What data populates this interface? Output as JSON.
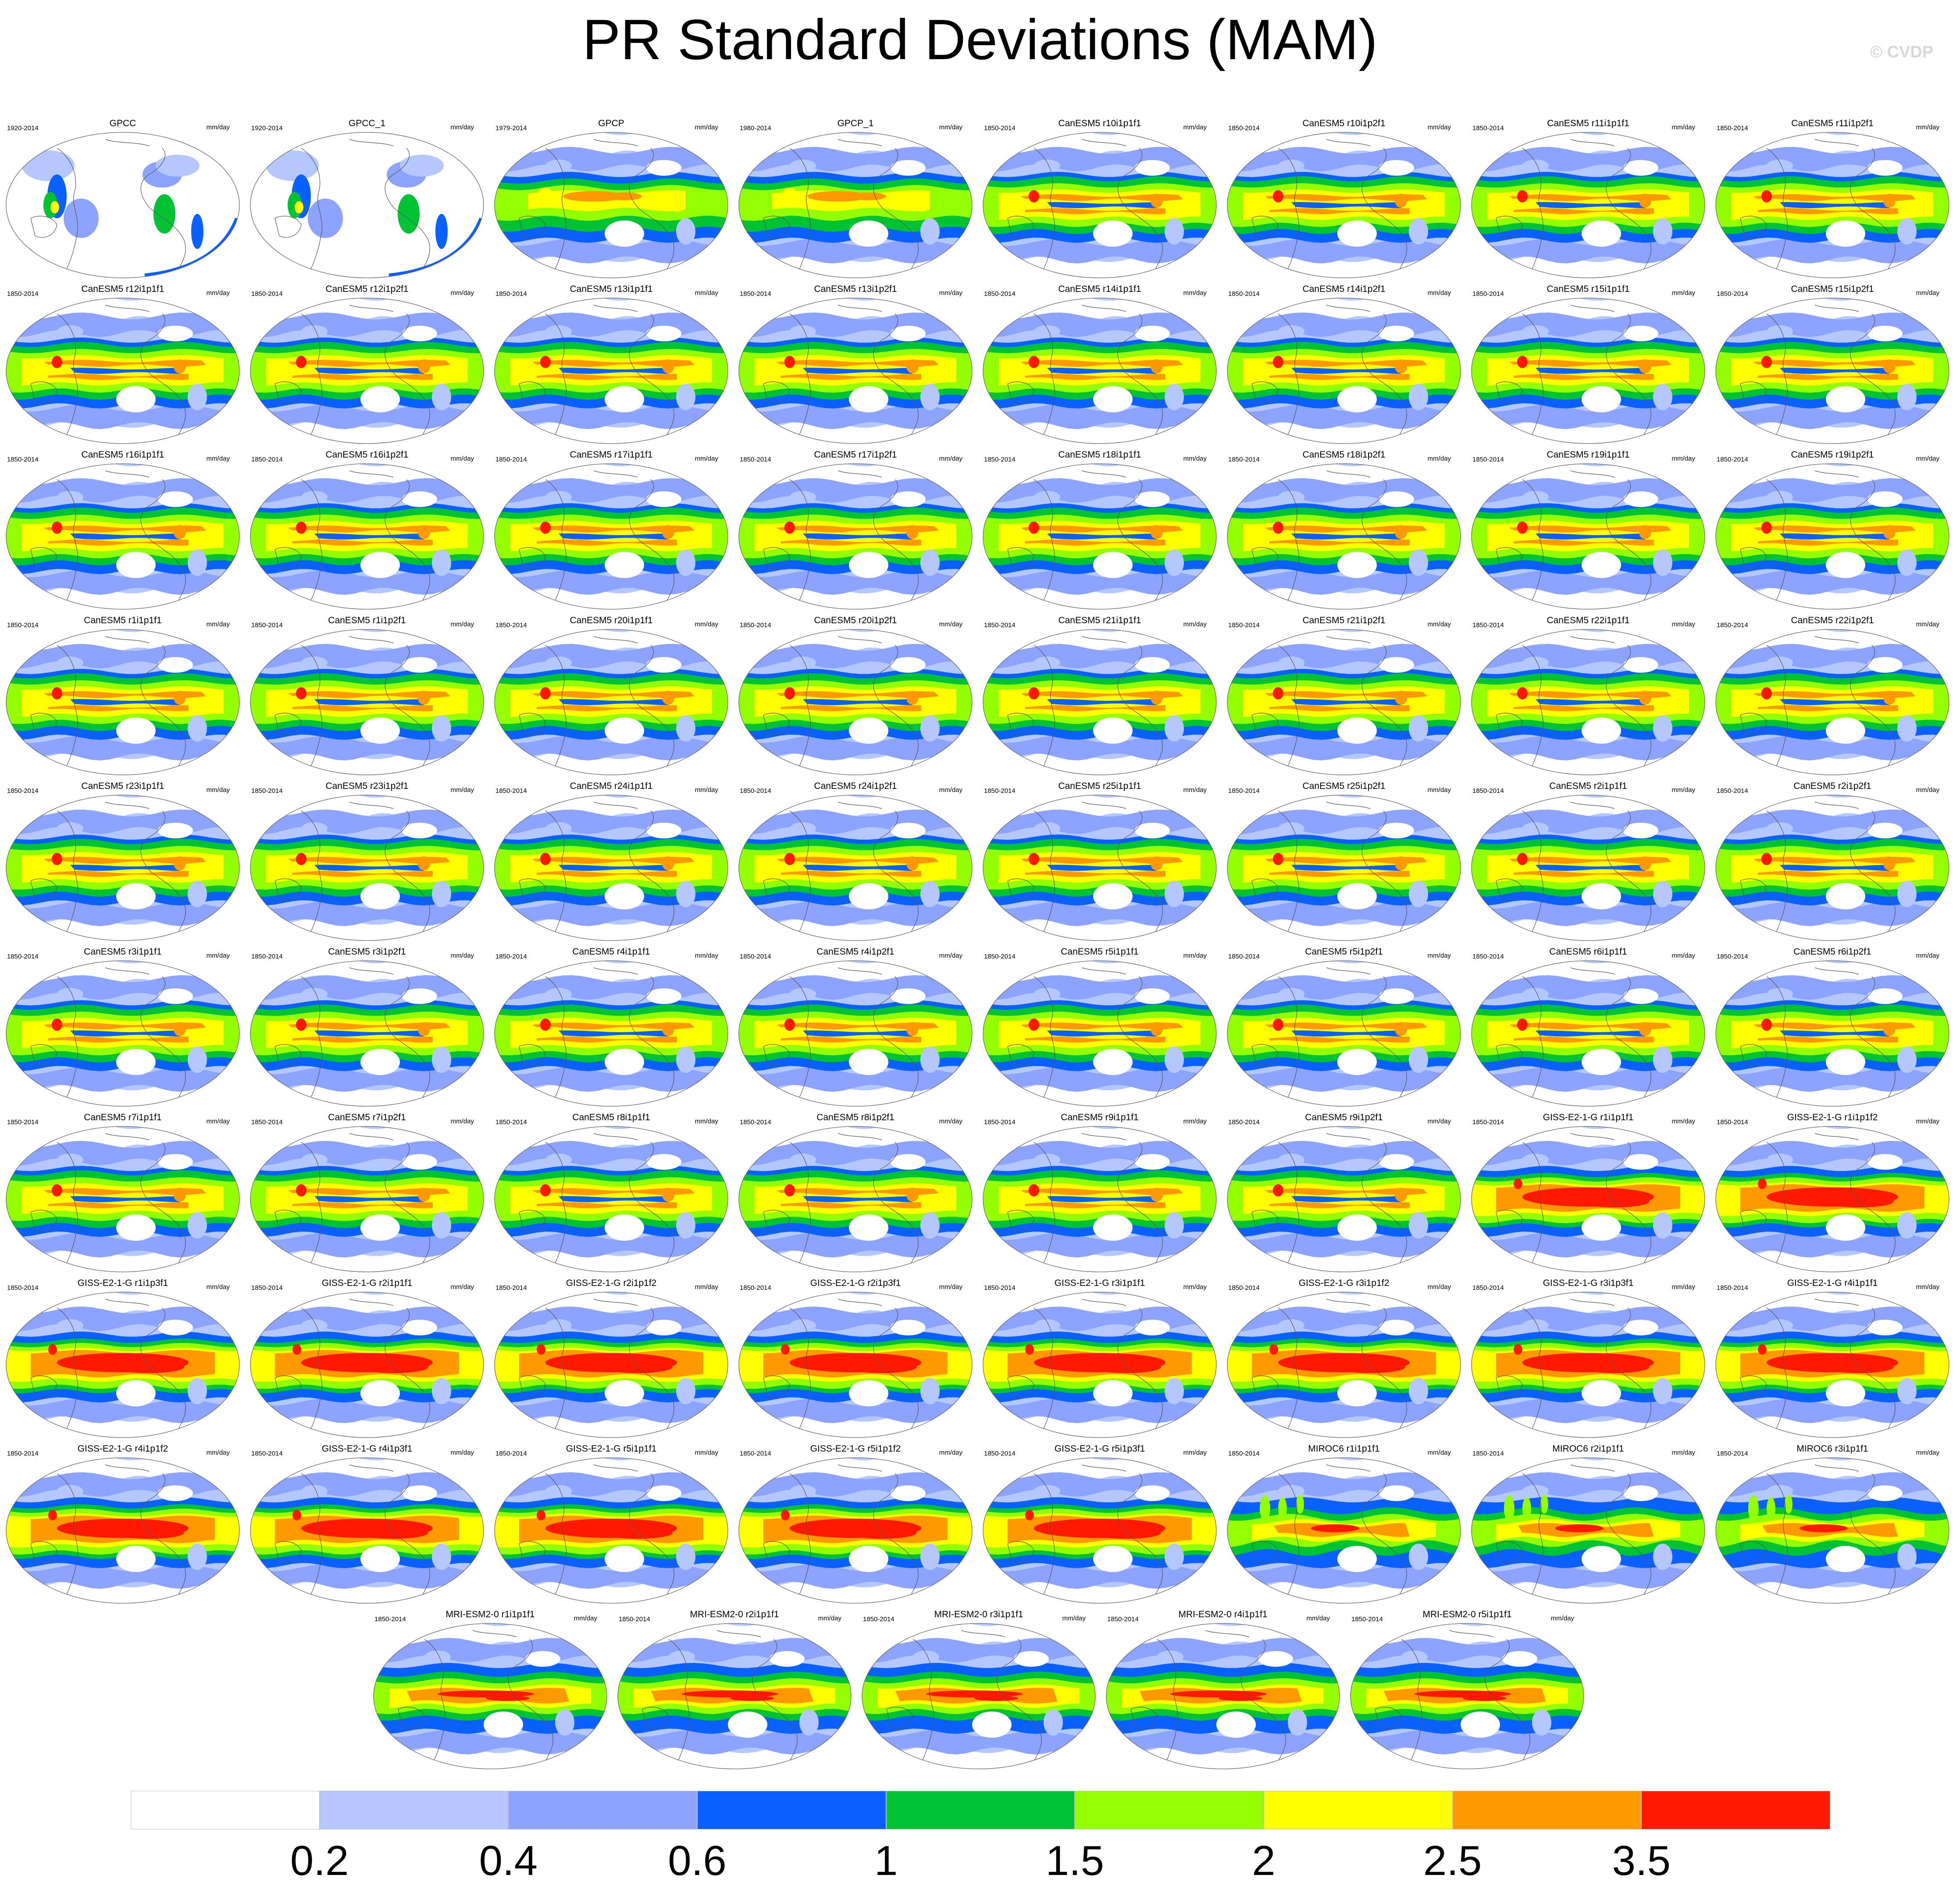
{
  "title": "PR Standard Deviations (MAM)",
  "watermark": "© CVDP",
  "units": "mm/day",
  "colorbar": {
    "labels": [
      "0.2",
      "0.4",
      "0.6",
      "1",
      "1.5",
      "2",
      "2.5",
      "3.5"
    ],
    "colors": [
      "#ffffff",
      "#b4c8ff",
      "#8ca3ff",
      "#0a61ff",
      "#00c333",
      "#93ff00",
      "#ffff00",
      "#ff9900",
      "#ff1900"
    ]
  },
  "panels": [
    {
      "title": "GPCC",
      "years": "1920-2014",
      "style": "gpcc"
    },
    {
      "title": "GPCC_1",
      "years": "1920-2014",
      "style": "gpcc"
    },
    {
      "title": "GPCP",
      "years": "1979-2014",
      "style": "gpcp"
    },
    {
      "title": "GPCP_1",
      "years": "1980-2014",
      "style": "gpcp"
    },
    {
      "title": "CanESM5 r10i1p1f1",
      "years": "1850-2014",
      "style": "canesm"
    },
    {
      "title": "CanESM5 r10i1p2f1",
      "years": "1850-2014",
      "style": "canesm"
    },
    {
      "title": "CanESM5 r11i1p1f1",
      "years": "1850-2014",
      "style": "canesm"
    },
    {
      "title": "CanESM5 r11i1p2f1",
      "years": "1850-2014",
      "style": "canesm"
    },
    {
      "title": "CanESM5 r12i1p1f1",
      "years": "1850-2014",
      "style": "canesm"
    },
    {
      "title": "CanESM5 r12i1p2f1",
      "years": "1850-2014",
      "style": "canesm"
    },
    {
      "title": "CanESM5 r13i1p1f1",
      "years": "1850-2014",
      "style": "canesm"
    },
    {
      "title": "CanESM5 r13i1p2f1",
      "years": "1850-2014",
      "style": "canesm"
    },
    {
      "title": "CanESM5 r14i1p1f1",
      "years": "1850-2014",
      "style": "canesm"
    },
    {
      "title": "CanESM5 r14i1p2f1",
      "years": "1850-2014",
      "style": "canesm"
    },
    {
      "title": "CanESM5 r15i1p1f1",
      "years": "1850-2014",
      "style": "canesm"
    },
    {
      "title": "CanESM5 r15i1p2f1",
      "years": "1850-2014",
      "style": "canesm"
    },
    {
      "title": "CanESM5 r16i1p1f1",
      "years": "1850-2014",
      "style": "canesm"
    },
    {
      "title": "CanESM5 r16i1p2f1",
      "years": "1850-2014",
      "style": "canesm"
    },
    {
      "title": "CanESM5 r17i1p1f1",
      "years": "1850-2014",
      "style": "canesm"
    },
    {
      "title": "CanESM5 r17i1p2f1",
      "years": "1850-2014",
      "style": "canesm"
    },
    {
      "title": "CanESM5 r18i1p1f1",
      "years": "1850-2014",
      "style": "canesm"
    },
    {
      "title": "CanESM5 r18i1p2f1",
      "years": "1850-2014",
      "style": "canesm"
    },
    {
      "title": "CanESM5 r19i1p1f1",
      "years": "1850-2014",
      "style": "canesm"
    },
    {
      "title": "CanESM5 r19i1p2f1",
      "years": "1850-2014",
      "style": "canesm"
    },
    {
      "title": "CanESM5 r1i1p1f1",
      "years": "1850-2014",
      "style": "canesm"
    },
    {
      "title": "CanESM5 r1i1p2f1",
      "years": "1850-2014",
      "style": "canesm"
    },
    {
      "title": "CanESM5 r20i1p1f1",
      "years": "1850-2014",
      "style": "canesm"
    },
    {
      "title": "CanESM5 r20i1p2f1",
      "years": "1850-2014",
      "style": "canesm"
    },
    {
      "title": "CanESM5 r21i1p1f1",
      "years": "1850-2014",
      "style": "canesm"
    },
    {
      "title": "CanESM5 r21i1p2f1",
      "years": "1850-2014",
      "style": "canesm"
    },
    {
      "title": "CanESM5 r22i1p1f1",
      "years": "1850-2014",
      "style": "canesm"
    },
    {
      "title": "CanESM5 r22i1p2f1",
      "years": "1850-2014",
      "style": "canesm"
    },
    {
      "title": "CanESM5 r23i1p1f1",
      "years": "1850-2014",
      "style": "canesm"
    },
    {
      "title": "CanESM5 r23i1p2f1",
      "years": "1850-2014",
      "style": "canesm"
    },
    {
      "title": "CanESM5 r24i1p1f1",
      "years": "1850-2014",
      "style": "canesm"
    },
    {
      "title": "CanESM5 r24i1p2f1",
      "years": "1850-2014",
      "style": "canesm"
    },
    {
      "title": "CanESM5 r25i1p1f1",
      "years": "1850-2014",
      "style": "canesm"
    },
    {
      "title": "CanESM5 r25i1p2f1",
      "years": "1850-2014",
      "style": "canesm"
    },
    {
      "title": "CanESM5 r2i1p1f1",
      "years": "1850-2014",
      "style": "canesm"
    },
    {
      "title": "CanESM5 r2i1p2f1",
      "years": "1850-2014",
      "style": "canesm"
    },
    {
      "title": "CanESM5 r3i1p1f1",
      "years": "1850-2014",
      "style": "canesm"
    },
    {
      "title": "CanESM5 r3i1p2f1",
      "years": "1850-2014",
      "style": "canesm"
    },
    {
      "title": "CanESM5 r4i1p1f1",
      "years": "1850-2014",
      "style": "canesm"
    },
    {
      "title": "CanESM5 r4i1p2f1",
      "years": "1850-2014",
      "style": "canesm"
    },
    {
      "title": "CanESM5 r5i1p1f1",
      "years": "1850-2014",
      "style": "canesm"
    },
    {
      "title": "CanESM5 r5i1p2f1",
      "years": "1850-2014",
      "style": "canesm"
    },
    {
      "title": "CanESM5 r6i1p1f1",
      "years": "1850-2014",
      "style": "canesm"
    },
    {
      "title": "CanESM5 r6i1p2f1",
      "years": "1850-2014",
      "style": "canesm"
    },
    {
      "title": "CanESM5 r7i1p1f1",
      "years": "1850-2014",
      "style": "canesm"
    },
    {
      "title": "CanESM5 r7i1p2f1",
      "years": "1850-2014",
      "style": "canesm"
    },
    {
      "title": "CanESM5 r8i1p1f1",
      "years": "1850-2014",
      "style": "canesm"
    },
    {
      "title": "CanESM5 r8i1p2f1",
      "years": "1850-2014",
      "style": "canesm"
    },
    {
      "title": "CanESM5 r9i1p1f1",
      "years": "1850-2014",
      "style": "canesm"
    },
    {
      "title": "CanESM5 r9i1p2f1",
      "years": "1850-2014",
      "style": "canesm"
    },
    {
      "title": "GISS-E2-1-G r1i1p1f1",
      "years": "1850-2014",
      "style": "giss"
    },
    {
      "title": "GISS-E2-1-G r1i1p1f2",
      "years": "1850-2014",
      "style": "giss"
    },
    {
      "title": "GISS-E2-1-G r1i1p3f1",
      "years": "1850-2014",
      "style": "giss"
    },
    {
      "title": "GISS-E2-1-G r2i1p1f1",
      "years": "1850-2014",
      "style": "giss"
    },
    {
      "title": "GISS-E2-1-G r2i1p1f2",
      "years": "1850-2014",
      "style": "giss"
    },
    {
      "title": "GISS-E2-1-G r2i1p3f1",
      "years": "1850-2014",
      "style": "giss"
    },
    {
      "title": "GISS-E2-1-G r3i1p1f1",
      "years": "1850-2014",
      "style": "giss"
    },
    {
      "title": "GISS-E2-1-G r3i1p1f2",
      "years": "1850-2014",
      "style": "giss"
    },
    {
      "title": "GISS-E2-1-G r3i1p3f1",
      "years": "1850-2014",
      "style": "giss"
    },
    {
      "title": "GISS-E2-1-G r4i1p1f1",
      "years": "1850-2014",
      "style": "giss"
    },
    {
      "title": "GISS-E2-1-G r4i1p1f2",
      "years": "1850-2014",
      "style": "giss"
    },
    {
      "title": "GISS-E2-1-G r4i1p3f1",
      "years": "1850-2014",
      "style": "giss"
    },
    {
      "title": "GISS-E2-1-G r5i1p1f1",
      "years": "1850-2014",
      "style": "giss"
    },
    {
      "title": "GISS-E2-1-G r5i1p1f2",
      "years": "1850-2014",
      "style": "giss"
    },
    {
      "title": "GISS-E2-1-G r5i1p3f1",
      "years": "1850-2014",
      "style": "giss"
    },
    {
      "title": "MIROC6 r1i1p1f1",
      "years": "1850-2014",
      "style": "miroc"
    },
    {
      "title": "MIROC6 r2i1p1f1",
      "years": "1850-2014",
      "style": "miroc"
    },
    {
      "title": "MIROC6 r3i1p1f1",
      "years": "1850-2014",
      "style": "miroc"
    },
    {
      "title": "MRI-ESM2-0 r1i1p1f1",
      "years": "1850-2014",
      "style": "mri"
    },
    {
      "title": "MRI-ESM2-0 r2i1p1f1",
      "years": "1850-2014",
      "style": "mri"
    },
    {
      "title": "MRI-ESM2-0 r3i1p1f1",
      "years": "1850-2014",
      "style": "mri"
    },
    {
      "title": "MRI-ESM2-0 r4i1p1f1",
      "years": "1850-2014",
      "style": "mri"
    },
    {
      "title": "MRI-ESM2-0 r5i1p1f1",
      "years": "1850-2014",
      "style": "mri"
    }
  ]
}
